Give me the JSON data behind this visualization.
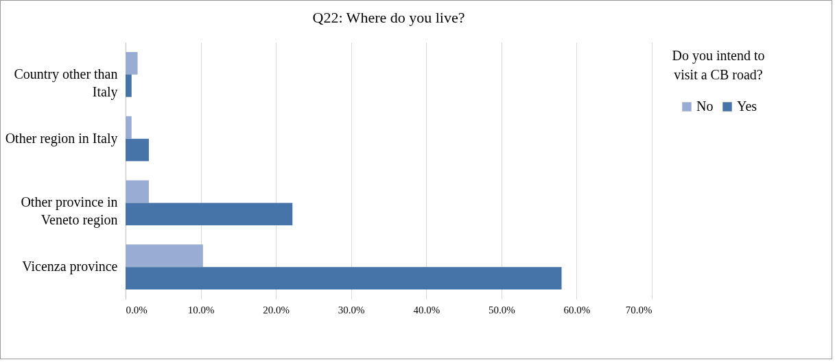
{
  "chart_data": {
    "type": "bar",
    "orientation": "horizontal",
    "title": "Q22: Where do you live?",
    "legend_title": "Do you intend to visit a CB road?",
    "categories": [
      "Country other than Italy",
      "Other region in Italy",
      "Other province in Veneto region",
      "Vicenza province"
    ],
    "series": [
      {
        "name": "No",
        "color": "#98acd4",
        "values": [
          1.6,
          0.8,
          3.1,
          10.3
        ]
      },
      {
        "name": "Yes",
        "color": "#4673a8",
        "values": [
          0.8,
          3.1,
          22.2,
          58.0
        ]
      }
    ],
    "xlim": [
      0,
      70
    ],
    "xticks": [
      {
        "value": 0,
        "label": "0.0%"
      },
      {
        "value": 10,
        "label": "10.0%"
      },
      {
        "value": 20,
        "label": "20.0%"
      },
      {
        "value": 30,
        "label": "30.0%"
      },
      {
        "value": 40,
        "label": "40.0%"
      },
      {
        "value": 50,
        "label": "50.0%"
      },
      {
        "value": 60,
        "label": "60.0%"
      },
      {
        "value": 70,
        "label": "70.0%"
      }
    ],
    "grid": "x",
    "legend": "right"
  }
}
